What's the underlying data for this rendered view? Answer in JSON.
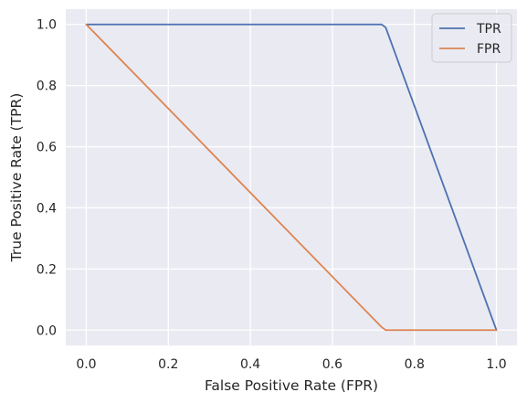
{
  "chart_data": {
    "type": "line",
    "title": "",
    "xlabel": "False Positive Rate (FPR)",
    "ylabel": "True Positive Rate (TPR)",
    "xlim": [
      -0.05,
      1.05
    ],
    "ylim": [
      -0.05,
      1.05
    ],
    "xticks": [
      0.0,
      0.2,
      0.4,
      0.6,
      0.8,
      1.0
    ],
    "yticks": [
      0.0,
      0.2,
      0.4,
      0.6,
      0.8,
      1.0
    ],
    "xtick_labels": [
      "0.0",
      "0.2",
      "0.4",
      "0.6",
      "0.8",
      "1.0"
    ],
    "ytick_labels": [
      "0.0",
      "0.2",
      "0.4",
      "0.6",
      "0.8",
      "1.0"
    ],
    "grid": true,
    "legend_position": "top-right",
    "series": [
      {
        "name": "TPR",
        "color": "#4c72b0",
        "x": [
          0.0,
          0.72,
          0.73,
          1.0
        ],
        "y": [
          1.0,
          1.0,
          0.99,
          0.0
        ]
      },
      {
        "name": "FPR",
        "color": "#dd8452",
        "x": [
          0.0,
          0.72,
          0.73,
          1.0
        ],
        "y": [
          1.0,
          0.01,
          0.0,
          0.0
        ]
      }
    ]
  }
}
